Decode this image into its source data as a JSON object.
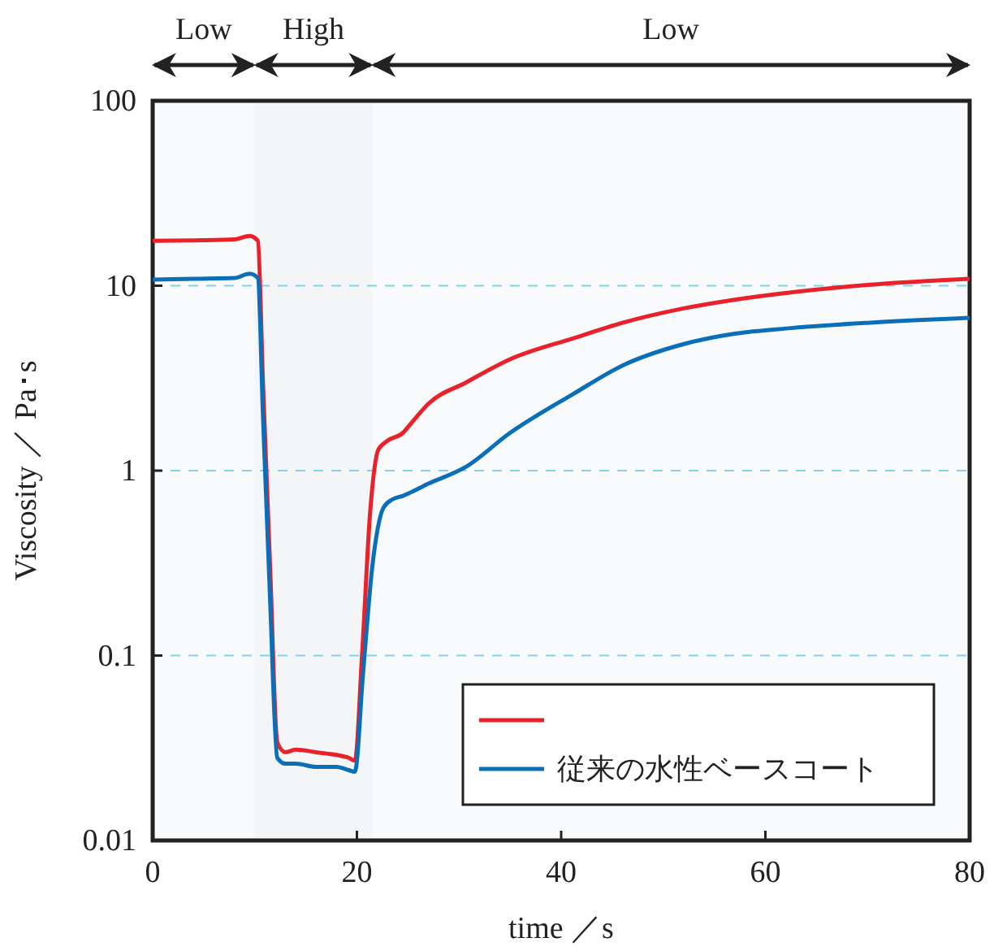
{
  "chart_data": {
    "type": "line",
    "xlabel": "time ／s",
    "ylabel": "Viscosity ／ Pa･s",
    "log": "y",
    "xlim": [
      0,
      80
    ],
    "xticks": [
      0,
      20,
      40,
      60,
      80
    ],
    "ylim": [
      0.01,
      100
    ],
    "yticks": [
      0.01,
      0.1,
      1,
      10,
      100
    ],
    "grid": "y",
    "legend": "bottom right",
    "line_style": "solid",
    "marker": "none",
    "bands": [
      {
        "axis": "x",
        "from": 0,
        "to": 10,
        "label": "Low"
      },
      {
        "axis": "x",
        "from": 10,
        "to": 21.5,
        "label": "High"
      },
      {
        "axis": "x",
        "from": 21.5,
        "to": 80,
        "label": "Low"
      }
    ],
    "series": [
      {
        "color": "#e8212b",
        "x": [
          0,
          4,
          8,
          9.5,
          10.3,
          10.8,
          11.5,
          12.2,
          13,
          14,
          16,
          18,
          19.2,
          19.8,
          20.5,
          21.3,
          22.1,
          23,
          24.5,
          25.3,
          27,
          30.7,
          35,
          41.2,
          46,
          51.8,
          57,
          62.5,
          70,
          80
        ],
        "values": [
          17.5,
          17.6,
          17.8,
          18.6,
          17.5,
          3,
          0.3,
          0.034,
          0.03,
          0.031,
          0.03,
          0.029,
          0.028,
          0.027,
          0.1,
          0.6,
          1.3,
          1.45,
          1.6,
          1.8,
          2.3,
          3.0,
          4.0,
          5.2,
          6.3,
          7.5,
          8.4,
          9.2,
          10.1,
          10.9
        ]
      },
      {
        "name": "従来の水性ベースコート",
        "color": "#0a6fb8",
        "x": [
          0,
          4,
          8,
          9.5,
          10.3,
          10.8,
          11.5,
          12.2,
          13,
          14,
          16,
          18,
          19.2,
          19.8,
          20.6,
          21.5,
          22.6,
          23.5,
          24.5,
          27,
          30.7,
          35,
          41.2,
          46,
          51.8,
          57,
          62.5,
          70,
          80
        ],
        "values": [
          10.8,
          10.9,
          11.0,
          11.6,
          11.0,
          2,
          0.2,
          0.028,
          0.026,
          0.026,
          0.025,
          0.025,
          0.024,
          0.0235,
          0.08,
          0.3,
          0.63,
          0.7,
          0.73,
          0.85,
          1.05,
          1.6,
          2.6,
          3.7,
          4.8,
          5.5,
          5.9,
          6.3,
          6.7
        ]
      }
    ]
  }
}
